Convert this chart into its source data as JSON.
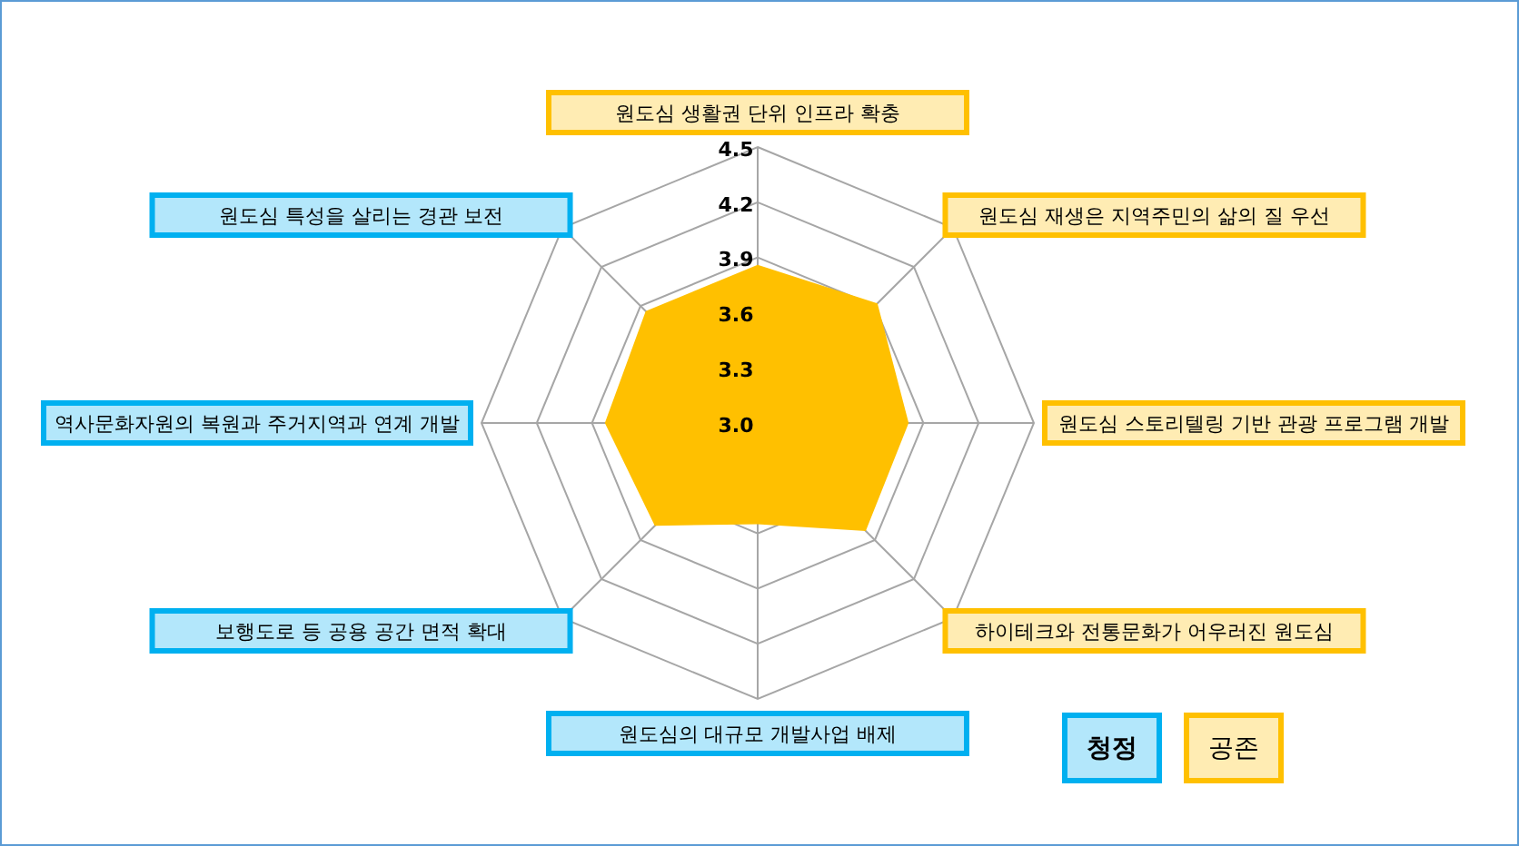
{
  "chart_data": {
    "type": "radar",
    "categories": [
      "원도심 생활권 단위 인프라 확충",
      "원도심 재생은 지역주민의 삶의 질 우선",
      "원도심 스토리텔링 기반 관광 프로그램 개발",
      "하이테크와 전통문화가 어우러진 원도심",
      "원도심의 대규모 개발사업 배제",
      "보행도로 등 공용 공간 면적 확대",
      "역사문화자원의 복원과 주거지역과 연계 개발",
      "원도심 특성을 살리는 경관 보전"
    ],
    "colors": [
      "#ffc000",
      "#ffc000",
      "#ffc000",
      "#ffc000",
      "#00b0f0",
      "#00b0f0",
      "#00b0f0",
      "#00b0f0"
    ],
    "series": [
      {
        "color": "#ffc000",
        "values": [
          3.86,
          3.92,
          3.82,
          3.83,
          3.55,
          3.79,
          3.83,
          3.86
        ]
      }
    ],
    "ylim": [
      3.0,
      4.5
    ],
    "yticks": [
      {
        "value": 3.0,
        "label": "3.0"
      },
      {
        "value": 3.3,
        "label": "3.3"
      },
      {
        "value": 3.6,
        "label": "3.6"
      },
      {
        "value": 3.9,
        "label": "3.9"
      },
      {
        "value": 4.2,
        "label": "4.2"
      },
      {
        "value": 4.5,
        "label": "4.5"
      }
    ],
    "annotations": [
      "청정",
      "공존"
    ],
    "grid": true,
    "legend": false
  }
}
